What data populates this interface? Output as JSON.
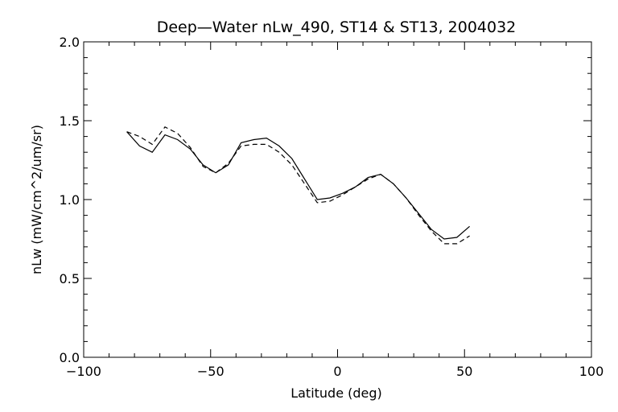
{
  "chart_data": {
    "type": "line",
    "title": "Deep—Water nLw_490, ST14 & ST13, 2004032",
    "xlabel": "Latitude (deg)",
    "ylabel": "nLw (mW/cm^2/um/sr)",
    "xlim": [
      -100,
      100
    ],
    "ylim": [
      0.0,
      2.0
    ],
    "x_ticks": [
      -100,
      -50,
      0,
      50,
      100
    ],
    "x_tick_labels": [
      "−100",
      "−50",
      "0",
      "50",
      "100"
    ],
    "y_ticks": [
      0.0,
      0.5,
      1.0,
      1.5,
      2.0
    ],
    "y_tick_labels": [
      "0.0",
      "0.5",
      "1.0",
      "1.5",
      "2.0"
    ],
    "grid": false,
    "series": [
      {
        "style": "solid",
        "color": "#000000",
        "x": [
          -83,
          -78,
          -73,
          -68,
          -63,
          -58,
          -53,
          -48,
          -43,
          -38,
          -33,
          -28,
          -23,
          -18,
          -13,
          -8,
          -3,
          2,
          7,
          12,
          17,
          22,
          27,
          32,
          37,
          42,
          47,
          52
        ],
        "y": [
          1.43,
          1.34,
          1.3,
          1.41,
          1.38,
          1.32,
          1.22,
          1.17,
          1.22,
          1.36,
          1.38,
          1.39,
          1.34,
          1.26,
          1.13,
          1.0,
          1.01,
          1.04,
          1.08,
          1.14,
          1.16,
          1.1,
          1.01,
          0.91,
          0.81,
          0.75,
          0.76,
          0.83
        ]
      },
      {
        "style": "dashed",
        "color": "#000000",
        "x": [
          -83,
          -78,
          -73,
          -68,
          -63,
          -58,
          -53,
          -48,
          -43,
          -38,
          -33,
          -28,
          -23,
          -18,
          -13,
          -8,
          -3,
          2,
          7,
          12,
          17,
          22,
          27,
          32,
          37,
          42,
          47,
          52
        ],
        "y": [
          1.43,
          1.4,
          1.35,
          1.46,
          1.42,
          1.33,
          1.21,
          1.17,
          1.23,
          1.34,
          1.35,
          1.35,
          1.3,
          1.22,
          1.1,
          0.98,
          0.99,
          1.03,
          1.08,
          1.13,
          1.16,
          1.1,
          1.01,
          0.9,
          0.8,
          0.72,
          0.72,
          0.77
        ]
      }
    ]
  }
}
